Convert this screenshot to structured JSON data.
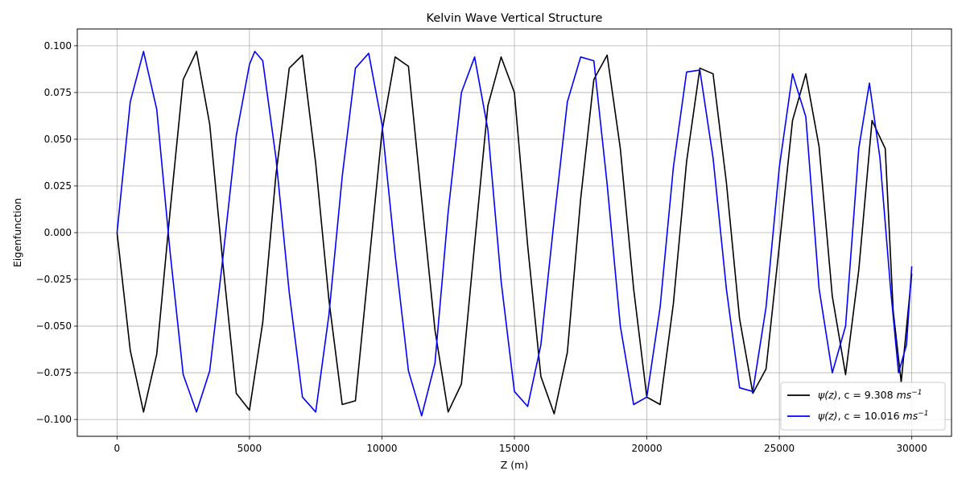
{
  "chart_data": {
    "type": "line",
    "title": "Kelvin Wave Vertical Structure",
    "xlabel": "Z (m)",
    "ylabel": "Eigenfunction",
    "xlim": [
      -1500,
      31500
    ],
    "ylim": [
      -0.109,
      0.109
    ],
    "x_ticks": [
      0,
      5000,
      10000,
      15000,
      20000,
      25000,
      30000
    ],
    "x_tick_labels": [
      "0",
      "5000",
      "10000",
      "15000",
      "20000",
      "25000",
      "30000"
    ],
    "y_ticks": [
      0.1,
      0.075,
      0.05,
      0.025,
      0.0,
      -0.025,
      -0.05,
      -0.075,
      -0.1
    ],
    "y_tick_labels": [
      "0.100",
      "0.075",
      "0.050",
      "0.025",
      "0.000",
      "−0.025",
      "−0.050",
      "−0.075",
      "−0.100"
    ],
    "grid": true,
    "legend_position": "lower-right",
    "series": [
      {
        "name": "ψ(z), c = 9.308 ms⁻¹",
        "legend_label": {
          "func": "ψ(z)",
          "text": ", c = 9.308 ",
          "unit": "ms",
          "exp": "−1"
        },
        "color": "#000000",
        "points": [
          [
            0,
            0.0
          ],
          [
            500,
            -0.063
          ],
          [
            1000,
            -0.096
          ],
          [
            1500,
            -0.065
          ],
          [
            2000,
            0.011
          ],
          [
            2500,
            0.082
          ],
          [
            3000,
            0.097
          ],
          [
            3500,
            0.058
          ],
          [
            4000,
            -0.017
          ],
          [
            4500,
            -0.086
          ],
          [
            5000,
            -0.095
          ],
          [
            5500,
            -0.048
          ],
          [
            6000,
            0.031
          ],
          [
            6500,
            0.088
          ],
          [
            7000,
            0.095
          ],
          [
            7500,
            0.037
          ],
          [
            8000,
            -0.036
          ],
          [
            8500,
            -0.092
          ],
          [
            9000,
            -0.09
          ],
          [
            9500,
            -0.018
          ],
          [
            10000,
            0.054
          ],
          [
            10500,
            0.094
          ],
          [
            11000,
            0.089
          ],
          [
            11500,
            0.018
          ],
          [
            12000,
            -0.052
          ],
          [
            12500,
            -0.096
          ],
          [
            13000,
            -0.081
          ],
          [
            13500,
            -0.006
          ],
          [
            14000,
            0.068
          ],
          [
            14500,
            0.094
          ],
          [
            15000,
            0.075
          ],
          [
            15500,
            -0.007
          ],
          [
            16000,
            -0.077
          ],
          [
            16500,
            -0.097
          ],
          [
            17000,
            -0.064
          ],
          [
            17500,
            0.018
          ],
          [
            18000,
            0.082
          ],
          [
            18500,
            0.095
          ],
          [
            19000,
            0.045
          ],
          [
            19500,
            -0.03
          ],
          [
            20000,
            -0.088
          ],
          [
            20500,
            -0.092
          ],
          [
            21000,
            -0.038
          ],
          [
            21500,
            0.038
          ],
          [
            22000,
            0.088
          ],
          [
            22500,
            0.085
          ],
          [
            23000,
            0.027
          ],
          [
            23500,
            -0.046
          ],
          [
            24000,
            -0.086
          ],
          [
            24500,
            -0.073
          ],
          [
            25000,
            -0.007
          ],
          [
            25500,
            0.06
          ],
          [
            26000,
            0.085
          ],
          [
            26500,
            0.046
          ],
          [
            27000,
            -0.034
          ],
          [
            27500,
            -0.076
          ],
          [
            28000,
            -0.02
          ],
          [
            28500,
            0.06
          ],
          [
            29000,
            0.045
          ],
          [
            29300,
            -0.042
          ],
          [
            29600,
            -0.08
          ],
          [
            30000,
            -0.022
          ]
        ]
      },
      {
        "name": "ψ(z), c = 10.016 ms⁻¹",
        "legend_label": {
          "func": "ψ(z)",
          "text": ", c = 10.016 ",
          "unit": "ms",
          "exp": "−1"
        },
        "color": "#0000ff",
        "points": [
          [
            0,
            0.0
          ],
          [
            500,
            0.07
          ],
          [
            1000,
            0.097
          ],
          [
            1500,
            0.066
          ],
          [
            2000,
            -0.01
          ],
          [
            2500,
            -0.076
          ],
          [
            3000,
            -0.096
          ],
          [
            3500,
            -0.074
          ],
          [
            4000,
            -0.013
          ],
          [
            4500,
            0.052
          ],
          [
            5000,
            0.09
          ],
          [
            5200,
            0.097
          ],
          [
            5500,
            0.092
          ],
          [
            6000,
            0.04
          ],
          [
            6500,
            -0.032
          ],
          [
            7000,
            -0.088
          ],
          [
            7500,
            -0.096
          ],
          [
            8000,
            -0.044
          ],
          [
            8500,
            0.03
          ],
          [
            9000,
            0.088
          ],
          [
            9500,
            0.096
          ],
          [
            10000,
            0.058
          ],
          [
            10500,
            -0.012
          ],
          [
            11000,
            -0.074
          ],
          [
            11500,
            -0.098
          ],
          [
            12000,
            -0.07
          ],
          [
            12500,
            0.011
          ],
          [
            13000,
            0.075
          ],
          [
            13500,
            0.094
          ],
          [
            14000,
            0.055
          ],
          [
            14500,
            -0.026
          ],
          [
            15000,
            -0.085
          ],
          [
            15500,
            -0.093
          ],
          [
            16000,
            -0.06
          ],
          [
            16500,
            0.007
          ],
          [
            17000,
            0.07
          ],
          [
            17500,
            0.094
          ],
          [
            18000,
            0.092
          ],
          [
            18500,
            0.026
          ],
          [
            19000,
            -0.05
          ],
          [
            19500,
            -0.092
          ],
          [
            20000,
            -0.088
          ],
          [
            20500,
            -0.04
          ],
          [
            21000,
            0.035
          ],
          [
            21500,
            0.086
          ],
          [
            22000,
            0.087
          ],
          [
            22500,
            0.04
          ],
          [
            23000,
            -0.03
          ],
          [
            23500,
            -0.083
          ],
          [
            24000,
            -0.085
          ],
          [
            24500,
            -0.04
          ],
          [
            25000,
            0.035
          ],
          [
            25500,
            0.085
          ],
          [
            26000,
            0.062
          ],
          [
            26500,
            -0.03
          ],
          [
            27000,
            -0.075
          ],
          [
            27500,
            -0.05
          ],
          [
            28000,
            0.045
          ],
          [
            28400,
            0.08
          ],
          [
            28800,
            0.04
          ],
          [
            29200,
            -0.03
          ],
          [
            29500,
            -0.075
          ],
          [
            29800,
            -0.06
          ],
          [
            30000,
            -0.018
          ]
        ]
      }
    ]
  }
}
